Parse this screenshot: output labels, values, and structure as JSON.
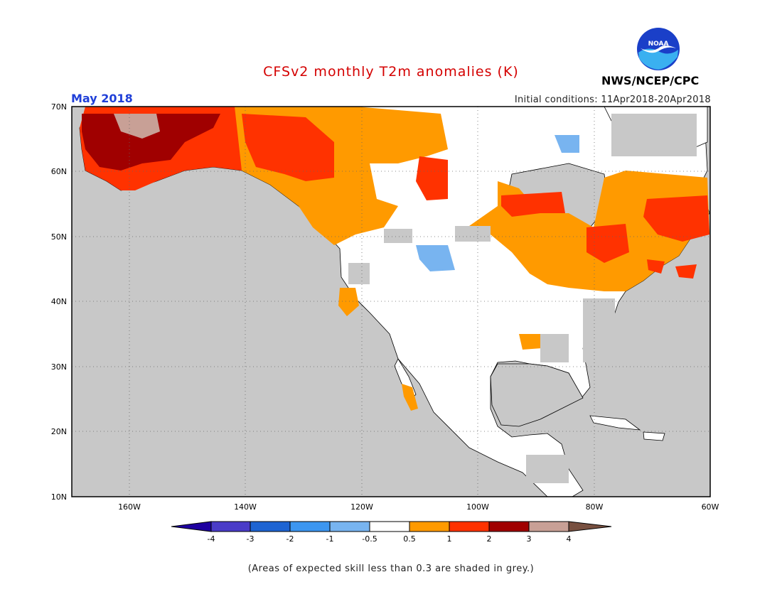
{
  "title": "CFSv2 monthly T2m anomalies (K)",
  "valid_month": "May 2018",
  "initial_conditions": "Initial conditions: 11Apr2018-20Apr2018",
  "organization": "NWS/NCEP/CPC",
  "logo_text": "NOAA",
  "footnote": "(Areas of expected skill less than 0.3 are shaded in grey.)",
  "map": {
    "lon_range": [
      -171,
      -60
    ],
    "lat_range": [
      10,
      70
    ],
    "lat_labels": [
      "70N",
      "60N",
      "50N",
      "40N",
      "30N",
      "20N",
      "10N"
    ],
    "lon_labels": [
      "160W",
      "140W",
      "120W",
      "100W",
      "80W",
      "60W"
    ],
    "ocean_color": "#c8c8c8",
    "land_color": "#ffffff",
    "low_skill_color": "#c8c8c8"
  },
  "colorbar": {
    "tick_labels": [
      "-4",
      "-3",
      "-2",
      "-1",
      "-0.5",
      "0.5",
      "1",
      "2",
      "3",
      "4"
    ],
    "colors": [
      "#1e00a0",
      "#4a3cc8",
      "#1e64d2",
      "#3c96f0",
      "#78b4f0",
      "#ffffff",
      "#ff9a00",
      "#ff3200",
      "#a00000",
      "#c8a096",
      "#785040"
    ]
  },
  "anomaly_regions": [
    {
      "name": "alaska-west-dark",
      "color": "#a00000"
    },
    {
      "name": "alaska-warm",
      "color": "#ff3200"
    },
    {
      "name": "yukon-warm",
      "color": "#ff9a00"
    },
    {
      "name": "quebec-warm",
      "color": "#ff3200"
    },
    {
      "name": "labrador-cool",
      "color": "#78b4f0"
    },
    {
      "name": "montana-cool",
      "color": "#78b4f0"
    }
  ]
}
